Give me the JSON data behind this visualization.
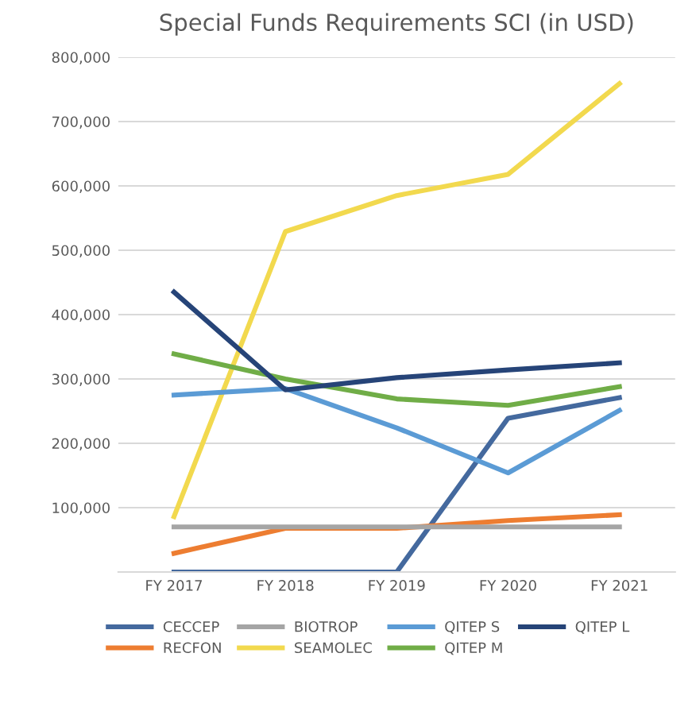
{
  "chart_data": {
    "type": "line",
    "title": "Special Funds Requirements SCI (in USD)",
    "categories": [
      "FY 2017",
      "FY 2018",
      "FY 2019",
      "FY 2020",
      "FY 2021"
    ],
    "series": [
      {
        "name": "CECCEP",
        "color": "#44699e",
        "values": [
          0,
          0,
          0,
          239000,
          271000
        ]
      },
      {
        "name": "RECFON",
        "color": "#ed7d31",
        "values": [
          29000,
          68000,
          68000,
          80000,
          89000
        ]
      },
      {
        "name": "BIOTROP",
        "color": "#a5a5a5",
        "values": [
          70000,
          70000,
          70000,
          70000,
          70000
        ]
      },
      {
        "name": "SEAMOLEC",
        "color": "#f2d94e",
        "values": [
          86000,
          529000,
          585000,
          618000,
          759000
        ]
      },
      {
        "name": "QITEP S",
        "color": "#5b9bd5",
        "values": [
          275000,
          285000,
          224000,
          154000,
          251000
        ]
      },
      {
        "name": "QITEP M",
        "color": "#70ad47",
        "values": [
          339000,
          300000,
          269000,
          259000,
          288000
        ]
      },
      {
        "name": "QITEP L",
        "color": "#264478",
        "values": [
          435000,
          283000,
          302000,
          314000,
          325000
        ]
      }
    ],
    "ylim": [
      0,
      800000
    ],
    "yticks": [
      {
        "value": 0,
        "label": null
      },
      {
        "value": 100000,
        "label": "100,000"
      },
      {
        "value": 200000,
        "label": "200,000"
      },
      {
        "value": 300000,
        "label": "300,000"
      },
      {
        "value": 400000,
        "label": "400,000"
      },
      {
        "value": 500000,
        "label": "500,000"
      },
      {
        "value": 600000,
        "label": "600,000"
      },
      {
        "value": 700000,
        "label": "700,000"
      },
      {
        "value": 800000,
        "label": "800,000"
      }
    ],
    "grid": "y",
    "legend": "bottom",
    "marker": "none",
    "line_style": "solid"
  }
}
